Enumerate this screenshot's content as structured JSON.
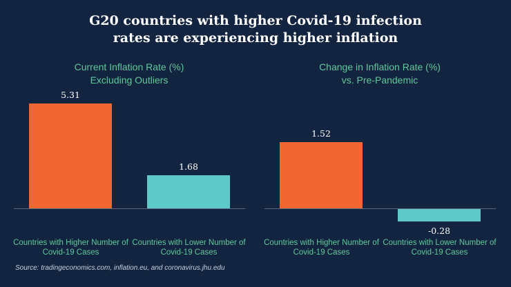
{
  "title": "G20 countries with higher Covid-19 infection rates are experiencing higher inflation",
  "source": "Source: tradingeconomics.com, inflation.eu, and coronavirus.jhu.edu",
  "chart_data": [
    {
      "type": "bar",
      "title": "Current Inflation Rate (%)",
      "subtitle": "Excluding Outliers",
      "categories": [
        "Countries with Higher Number of Covid-19 Cases",
        "Countries with Lower Number of Covid-19 Cases"
      ],
      "values": [
        5.31,
        1.68
      ],
      "colors": [
        "#f26631",
        "#5ec9c9"
      ]
    },
    {
      "type": "bar",
      "title": "Change in Inflation Rate (%)",
      "subtitle": "vs. Pre-Pandemic",
      "categories": [
        "Countries with Higher Number of Covid-19 Cases",
        "Countries with Lower Number of Covid-19 Cases"
      ],
      "values": [
        1.52,
        -0.28
      ],
      "colors": [
        "#f26631",
        "#5ec9c9"
      ]
    }
  ]
}
